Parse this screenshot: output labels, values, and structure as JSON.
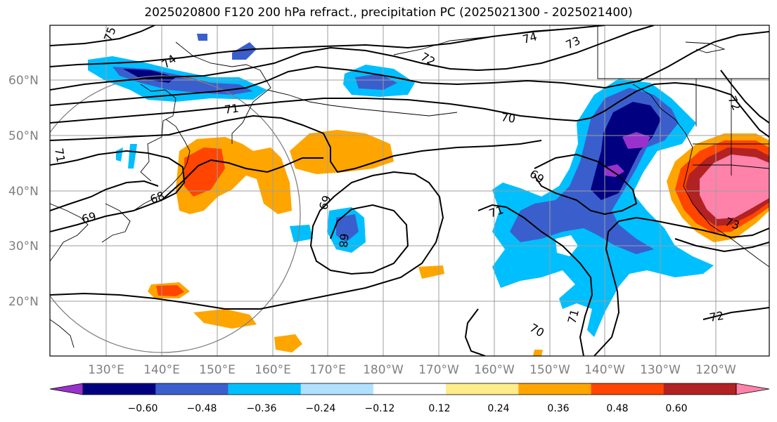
{
  "title": "2025020800 F120 200 hPa refract., precipitation PC (2025021300 - 2025021400)",
  "map": {
    "lon_labels": [
      "130°E",
      "140°E",
      "150°E",
      "160°E",
      "170°E",
      "180°W",
      "170°W",
      "160°W",
      "150°W",
      "140°W",
      "130°W",
      "120°W"
    ],
    "lat_labels": [
      "60°N",
      "50°N",
      "40°N",
      "30°N",
      "20°N"
    ],
    "contour_labels": [
      "75",
      "74",
      "74",
      "73",
      "72",
      "72",
      "71",
      "71",
      "71",
      "70",
      "70",
      "69",
      "69",
      "69",
      "68",
      "68",
      "71",
      "71",
      "72",
      "73"
    ]
  },
  "colorbar": {
    "tick_labels": [
      "−0.60",
      "−0.48",
      "−0.36",
      "−0.24",
      "−0.12",
      "0.12",
      "0.24",
      "0.36",
      "0.48",
      "0.60"
    ],
    "colors": [
      "#9932CC",
      "#000080",
      "#3A5FCD",
      "#00BFFF",
      "#B0E2FF",
      "#FFFFFF",
      "#FFEC8B",
      "#FFA500",
      "#FF4500",
      "#B22222",
      "#FF82AB"
    ]
  }
}
